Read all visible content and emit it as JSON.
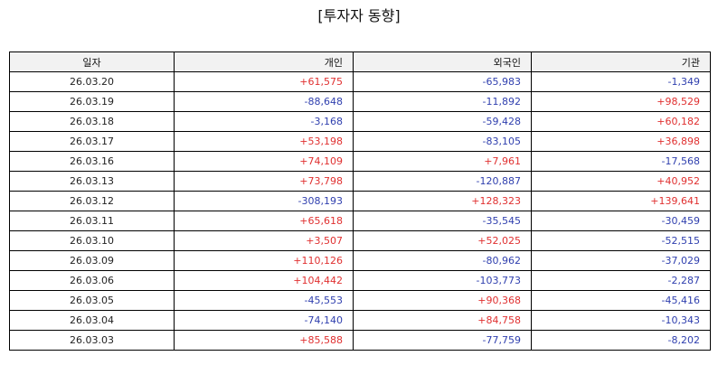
{
  "title": "[투자자 동향]",
  "columns": {
    "date": "일자",
    "individual": "개인",
    "foreign": "외국인",
    "institution": "기관"
  },
  "colors": {
    "positive": "#e03030",
    "negative": "#2f3fae"
  },
  "rows": [
    {
      "date": "26.03.20",
      "individual": "+61,575",
      "foreign": "-65,983",
      "institution": "-1,349"
    },
    {
      "date": "26.03.19",
      "individual": "-88,648",
      "foreign": "-11,892",
      "institution": "+98,529"
    },
    {
      "date": "26.03.18",
      "individual": "-3,168",
      "foreign": "-59,428",
      "institution": "+60,182"
    },
    {
      "date": "26.03.17",
      "individual": "+53,198",
      "foreign": "-83,105",
      "institution": "+36,898"
    },
    {
      "date": "26.03.16",
      "individual": "+74,109",
      "foreign": "+7,961",
      "institution": "-17,568"
    },
    {
      "date": "26.03.13",
      "individual": "+73,798",
      "foreign": "-120,887",
      "institution": "+40,952"
    },
    {
      "date": "26.03.12",
      "individual": "-308,193",
      "foreign": "+128,323",
      "institution": "+139,641"
    },
    {
      "date": "26.03.11",
      "individual": "+65,618",
      "foreign": "-35,545",
      "institution": "-30,459"
    },
    {
      "date": "26.03.10",
      "individual": "+3,507",
      "foreign": "+52,025",
      "institution": "-52,515"
    },
    {
      "date": "26.03.09",
      "individual": "+110,126",
      "foreign": "-80,962",
      "institution": "-37,029"
    },
    {
      "date": "26.03.06",
      "individual": "+104,442",
      "foreign": "-103,773",
      "institution": "-2,287"
    },
    {
      "date": "26.03.05",
      "individual": "-45,553",
      "foreign": "+90,368",
      "institution": "-45,416"
    },
    {
      "date": "26.03.04",
      "individual": "-74,140",
      "foreign": "+84,758",
      "institution": "-10,343"
    },
    {
      "date": "26.03.03",
      "individual": "+85,588",
      "foreign": "-77,759",
      "institution": "-8,202"
    }
  ]
}
